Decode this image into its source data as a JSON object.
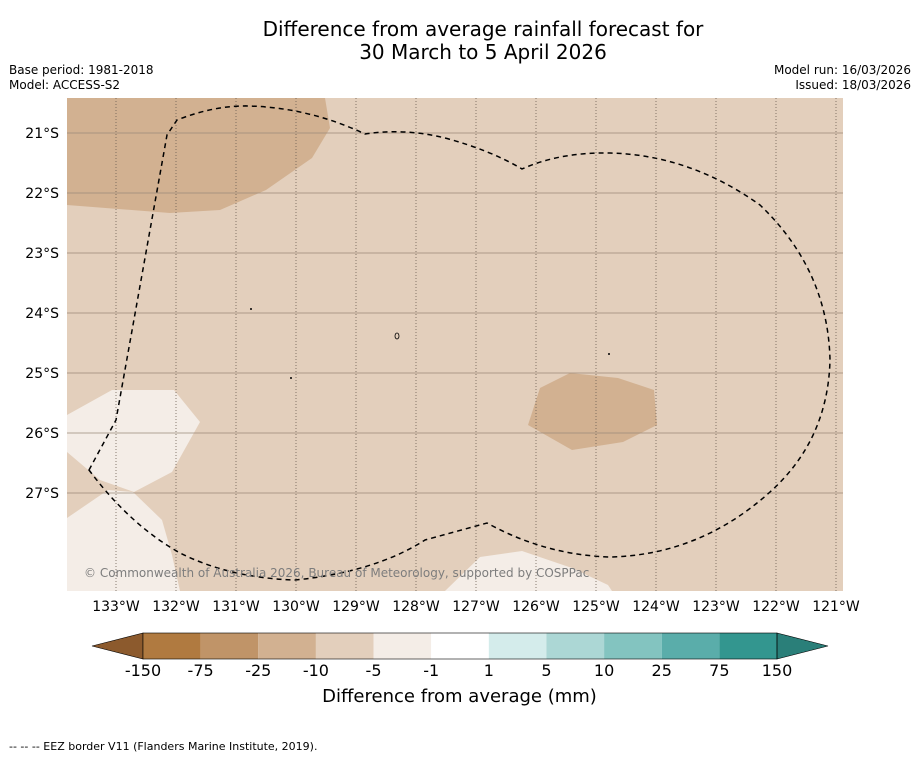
{
  "title": {
    "line1": "Difference from average rainfall forecast for",
    "line2": "30 March to 5 April 2026"
  },
  "meta": {
    "base_period": "Base period: 1981-2018",
    "model": "Model: ACCESS-S2",
    "model_run": "Model run: 16/03/2026",
    "issued": "Issued: 18/03/2026"
  },
  "map": {
    "copyright": "© Commonwealth of Australia 2026, Bureau of Meteorology, supported by COSPPac",
    "lat_labels": [
      "21°S",
      "22°S",
      "23°S",
      "24°S",
      "25°S",
      "26°S",
      "27°S"
    ],
    "lon_labels": [
      "133°W",
      "132°W",
      "131°W",
      "130°W",
      "129°W",
      "128°W",
      "127°W",
      "126°W",
      "125°W",
      "124°W",
      "123°W",
      "122°W",
      "121°W"
    ]
  },
  "colorbar": {
    "unit_label": "Difference from average (mm)",
    "ticks": [
      "-150",
      "-75",
      "-25",
      "-10",
      "-5",
      "-1",
      "1",
      "5",
      "10",
      "25",
      "75",
      "150"
    ],
    "colors": [
      "#b07a40",
      "#c09468",
      "#d2b191",
      "#e3cfbc",
      "#f4ede7",
      "#ffffff",
      "#d4eceb",
      "#acd7d5",
      "#83c4c0",
      "#5aadaa",
      "#33968f"
    ],
    "low_extend_color": "#8c5a2d",
    "high_extend_color": "#2a7f79"
  },
  "footer": {
    "eez_note": "--  --  -- EEZ border V11 (Flanders Marine Institute, 2019)."
  }
}
